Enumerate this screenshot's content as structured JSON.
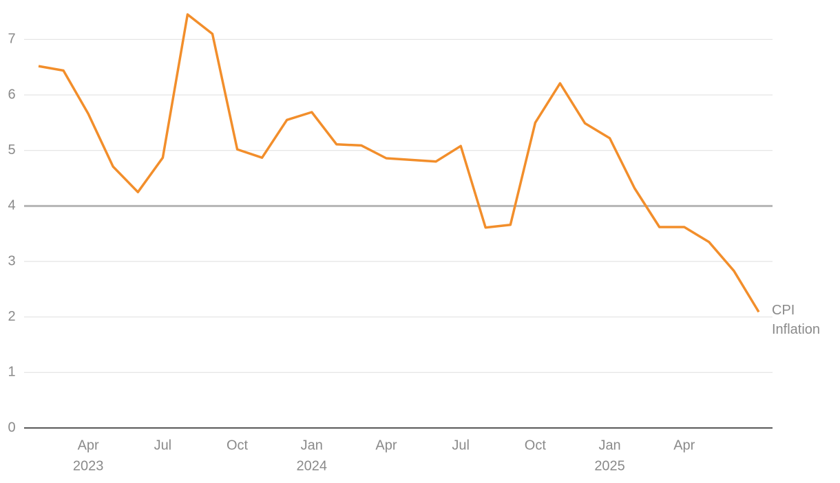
{
  "chart_data": {
    "type": "line",
    "categories": [
      null,
      null,
      [
        "Apr",
        "2023"
      ],
      null,
      null,
      [
        "Jul"
      ],
      null,
      null,
      [
        "Oct"
      ],
      null,
      null,
      [
        "Jan",
        "2024"
      ],
      null,
      null,
      [
        "Apr"
      ],
      null,
      null,
      [
        "Jul"
      ],
      null,
      null,
      [
        "Oct"
      ],
      null,
      null,
      [
        "Jan",
        "2025"
      ],
      null,
      null,
      [
        "Apr"
      ],
      null,
      null,
      null
    ],
    "series": [
      {
        "name": "CPI Inflation",
        "color": "#f28e2b",
        "values": [
          6.52,
          6.44,
          5.66,
          4.71,
          4.25,
          4.87,
          7.45,
          7.1,
          5.02,
          4.87,
          5.55,
          5.69,
          5.11,
          5.09,
          4.86,
          4.83,
          4.8,
          5.08,
          3.61,
          3.66,
          5.5,
          6.21,
          5.49,
          5.22,
          4.32,
          3.62,
          3.62,
          3.35,
          2.83,
          2.09
        ]
      }
    ],
    "ylim": [
      0,
      7.5
    ],
    "yticks": [
      0,
      1,
      2,
      3,
      4,
      5,
      6,
      7
    ],
    "grid": true,
    "reference_line": 4
  }
}
